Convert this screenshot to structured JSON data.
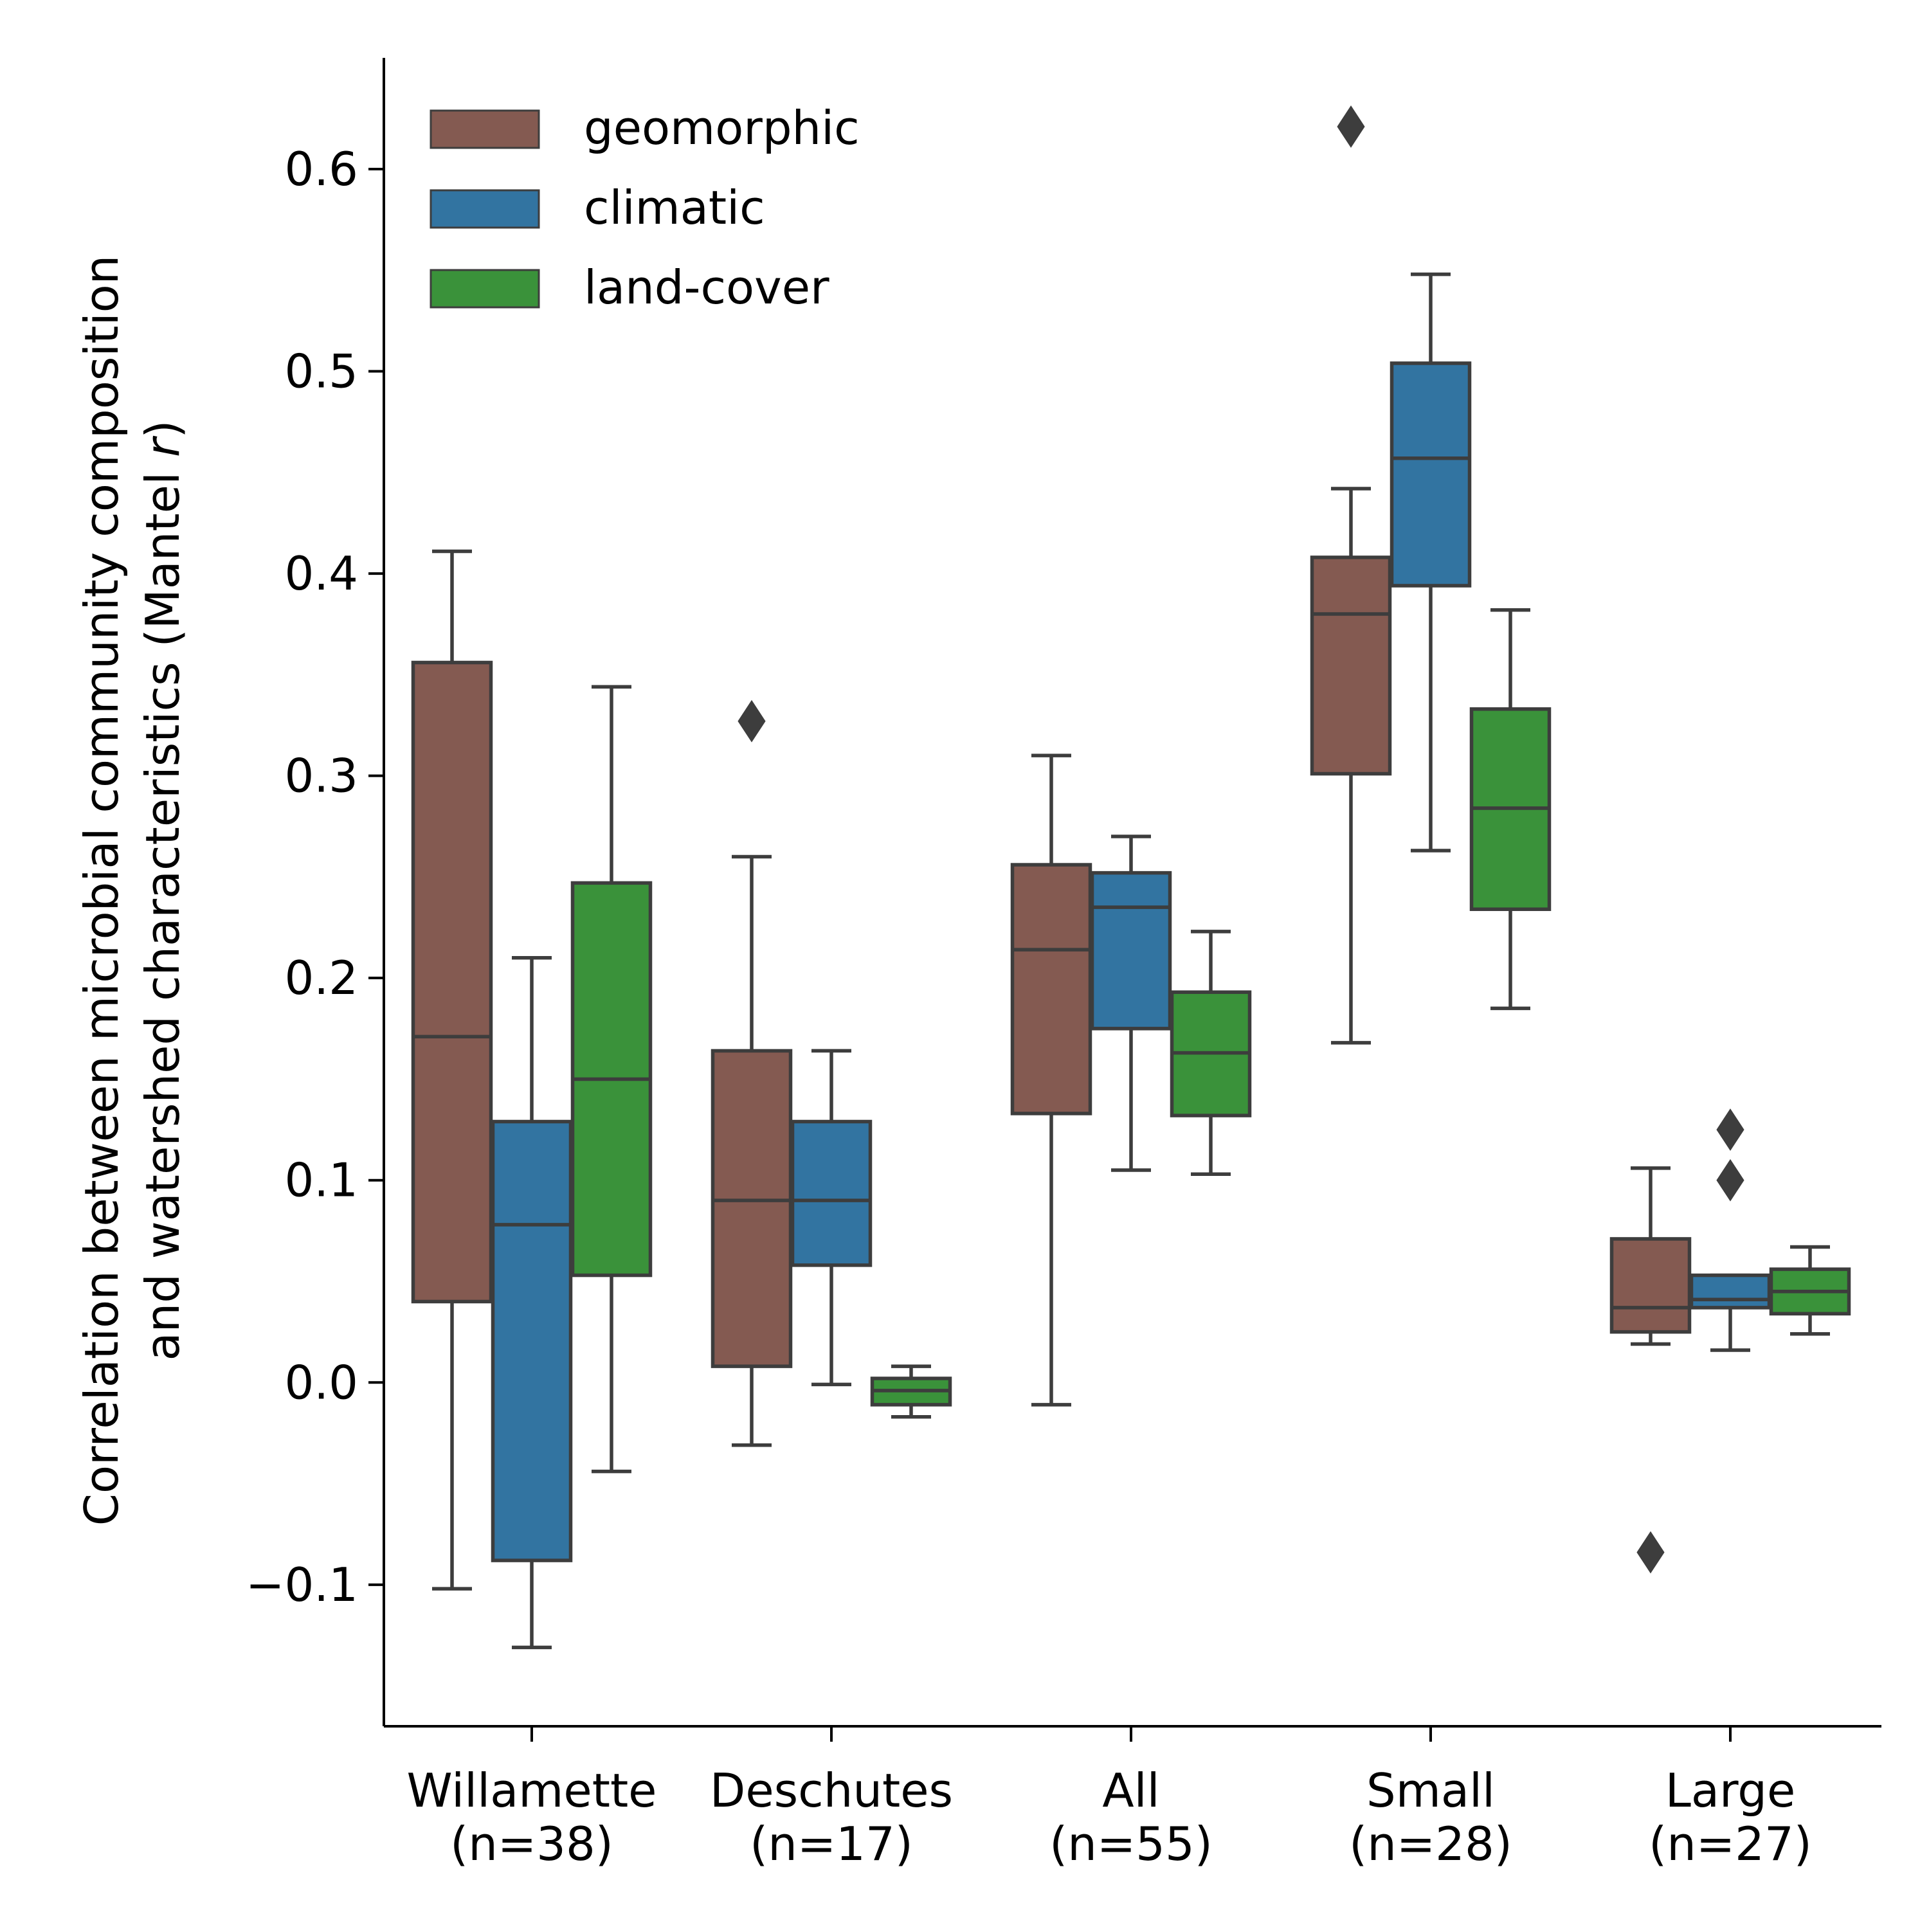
{
  "chart_data": {
    "type": "box",
    "ylabel_line1": "Correlation between microbial community composition",
    "ylabel_line2_prefix": "and watershed characteristics (Mantel ",
    "ylabel_line2_italic": "r",
    "ylabel_line2_suffix": ")",
    "ylim": [
      -0.17,
      0.655
    ],
    "yticks": [
      {
        "value": -0.1,
        "label": "−0.1"
      },
      {
        "value": 0.0,
        "label": "0.0"
      },
      {
        "value": 0.1,
        "label": "0.1"
      },
      {
        "value": 0.2,
        "label": "0.2"
      },
      {
        "value": 0.3,
        "label": "0.3"
      },
      {
        "value": 0.4,
        "label": "0.4"
      },
      {
        "value": 0.5,
        "label": "0.5"
      },
      {
        "value": 0.6,
        "label": "0.6"
      }
    ],
    "categories": [
      {
        "name": "Willamette",
        "n": "(n=38)"
      },
      {
        "name": "Deschutes",
        "n": "(n=17)"
      },
      {
        "name": "All",
        "n": "(n=55)"
      },
      {
        "name": "Small",
        "n": "(n=28)"
      },
      {
        "name": "Large",
        "n": "(n=27)"
      }
    ],
    "legend_position": "top-left",
    "grid": false,
    "series": [
      {
        "name": "geomorphic",
        "color": "#845a51",
        "boxes": [
          {
            "whislo": -0.102,
            "q1": 0.04,
            "med": 0.171,
            "q3": 0.356,
            "whishi": 0.411,
            "fliers": []
          },
          {
            "whislo": -0.031,
            "q1": 0.008,
            "med": 0.09,
            "q3": 0.164,
            "whishi": 0.26,
            "fliers": [
              0.327
            ]
          },
          {
            "whislo": -0.011,
            "q1": 0.133,
            "med": 0.214,
            "q3": 0.256,
            "whishi": 0.31,
            "fliers": []
          },
          {
            "whislo": 0.168,
            "q1": 0.301,
            "med": 0.38,
            "q3": 0.408,
            "whishi": 0.442,
            "fliers": [
              0.621
            ]
          },
          {
            "whislo": 0.019,
            "q1": 0.025,
            "med": 0.037,
            "q3": 0.071,
            "whishi": 0.106,
            "fliers": [
              -0.084
            ]
          }
        ]
      },
      {
        "name": "climatic",
        "color": "#3274a1",
        "boxes": [
          {
            "whislo": -0.131,
            "q1": -0.088,
            "med": 0.078,
            "q3": 0.129,
            "whishi": 0.21,
            "fliers": []
          },
          {
            "whislo": -0.001,
            "q1": 0.058,
            "med": 0.09,
            "q3": 0.129,
            "whishi": 0.164,
            "fliers": []
          },
          {
            "whislo": 0.105,
            "q1": 0.175,
            "med": 0.235,
            "q3": 0.252,
            "whishi": 0.27,
            "fliers": []
          },
          {
            "whislo": 0.263,
            "q1": 0.394,
            "med": 0.457,
            "q3": 0.504,
            "whishi": 0.548,
            "fliers": []
          },
          {
            "whislo": 0.016,
            "q1": 0.037,
            "med": 0.041,
            "q3": 0.053,
            "whishi": 0.053,
            "fliers": [
              0.1,
              0.125
            ]
          }
        ]
      },
      {
        "name": "land-cover",
        "color": "#3a923a",
        "boxes": [
          {
            "whislo": -0.044,
            "q1": 0.053,
            "med": 0.15,
            "q3": 0.247,
            "whishi": 0.344,
            "fliers": []
          },
          {
            "whislo": -0.017,
            "q1": -0.011,
            "med": -0.004,
            "q3": 0.002,
            "whishi": 0.008,
            "fliers": []
          },
          {
            "whislo": 0.103,
            "q1": 0.132,
            "med": 0.163,
            "q3": 0.193,
            "whishi": 0.223,
            "fliers": []
          },
          {
            "whislo": 0.185,
            "q1": 0.234,
            "med": 0.284,
            "q3": 0.333,
            "whishi": 0.382,
            "fliers": []
          },
          {
            "whislo": 0.024,
            "q1": 0.034,
            "med": 0.045,
            "q3": 0.056,
            "whishi": 0.067,
            "fliers": []
          }
        ]
      }
    ]
  }
}
